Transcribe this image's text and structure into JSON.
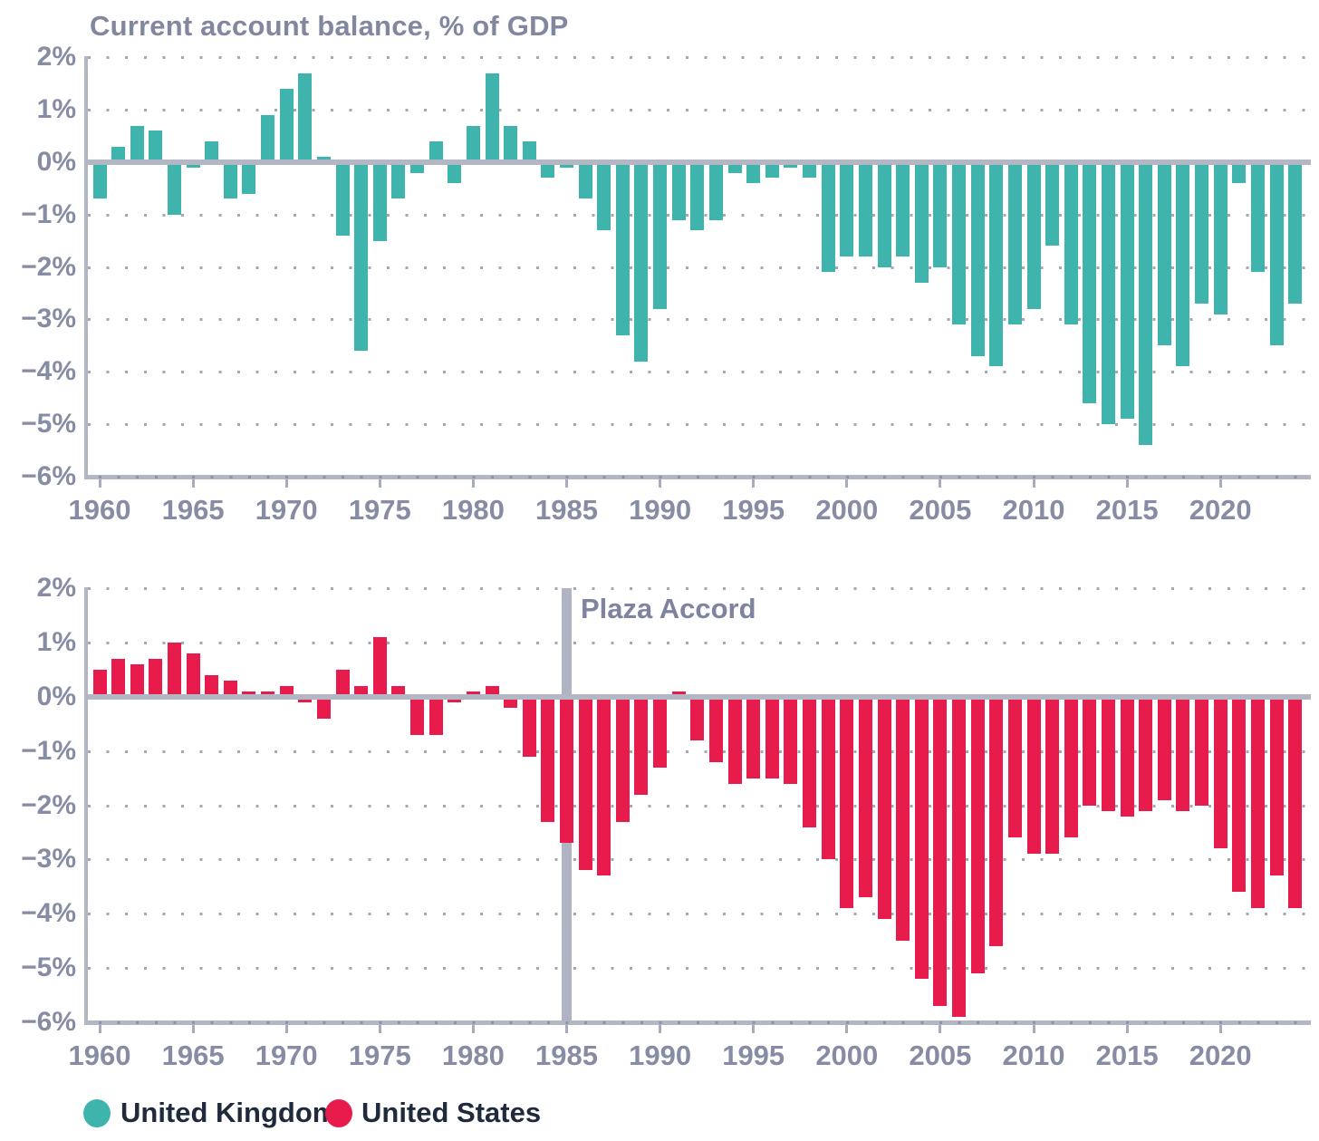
{
  "chart_data": {
    "type": "bar",
    "layout": "two stacked panels, one series per panel, shared x axis",
    "title": "Current account balance, % of GDP",
    "ylabel": "Current account balance, % of GDP",
    "ylim": [
      -6,
      2
    ],
    "y_tick_labels": [
      "2%",
      "1%",
      "0%",
      "−1%",
      "−2%",
      "−3%",
      "−4%",
      "−5%",
      "−6%"
    ],
    "y_tick_values": [
      2,
      1,
      0,
      -1,
      -2,
      -3,
      -4,
      -5,
      -6
    ],
    "grid": "dotted horizontal gridlines at each 1%",
    "legend_position": "bottom-left",
    "x": [
      1960,
      1961,
      1962,
      1963,
      1964,
      1965,
      1966,
      1967,
      1968,
      1969,
      1970,
      1971,
      1972,
      1973,
      1974,
      1975,
      1976,
      1977,
      1978,
      1979,
      1980,
      1981,
      1982,
      1983,
      1984,
      1985,
      1986,
      1987,
      1988,
      1989,
      1990,
      1991,
      1992,
      1993,
      1994,
      1995,
      1996,
      1997,
      1998,
      1999,
      2000,
      2001,
      2002,
      2003,
      2004,
      2005,
      2006,
      2007,
      2008,
      2009,
      2010,
      2011,
      2012,
      2013,
      2014,
      2015,
      2016,
      2017,
      2018,
      2019,
      2020,
      2021,
      2022,
      2023,
      2024
    ],
    "x_tick_years": [
      1960,
      1965,
      1970,
      1975,
      1980,
      1985,
      1990,
      1995,
      2000,
      2005,
      2010,
      2015,
      2020
    ],
    "series": [
      {
        "name": "United Kingdom",
        "panel": 0,
        "color": "#3EB4AD",
        "values": [
          -0.7,
          0.3,
          0.7,
          0.6,
          -1.0,
          -0.1,
          0.4,
          -0.7,
          -0.6,
          0.9,
          1.4,
          1.7,
          0.1,
          -1.4,
          -3.6,
          -1.5,
          -0.7,
          -0.2,
          0.4,
          -0.4,
          0.7,
          1.7,
          0.7,
          0.4,
          -0.3,
          -0.1,
          -0.7,
          -1.3,
          -3.3,
          -3.8,
          -2.8,
          -1.1,
          -1.3,
          -1.1,
          -0.2,
          -0.4,
          -0.3,
          -0.1,
          -0.3,
          -2.1,
          -1.8,
          -1.8,
          -2.0,
          -1.8,
          -2.3,
          -2.0,
          -3.1,
          -3.7,
          -3.9,
          -3.1,
          -2.8,
          -1.6,
          -3.1,
          -4.6,
          -5.0,
          -4.9,
          -5.4,
          -3.5,
          -3.9,
          -2.7,
          -2.9,
          -0.4,
          -2.1,
          -3.5,
          -2.7
        ]
      },
      {
        "name": "United States",
        "panel": 1,
        "color": "#E71C4D",
        "values": [
          0.5,
          0.7,
          0.6,
          0.7,
          1.0,
          0.8,
          0.4,
          0.3,
          0.1,
          0.1,
          0.2,
          -0.1,
          -0.4,
          0.5,
          0.2,
          1.1,
          0.2,
          -0.7,
          -0.7,
          -0.1,
          0.1,
          0.2,
          -0.2,
          -1.1,
          -2.3,
          -2.7,
          -3.2,
          -3.3,
          -2.3,
          -1.8,
          -1.3,
          0.1,
          -0.8,
          -1.2,
          -1.6,
          -1.5,
          -1.5,
          -1.6,
          -2.4,
          -3.0,
          -3.9,
          -3.7,
          -4.1,
          -4.5,
          -5.2,
          -5.7,
          -5.9,
          -5.1,
          -4.6,
          -2.6,
          -2.9,
          -2.9,
          -2.6,
          -2.0,
          -2.1,
          -2.2,
          -2.1,
          -1.9,
          -2.1,
          -2.0,
          -2.8,
          -3.6,
          -3.9,
          -3.3,
          -3.9
        ]
      }
    ],
    "annotation": {
      "text": "Plaza Accord",
      "x": 1985,
      "panel": 1,
      "style": "vertical gray line"
    }
  },
  "colors": {
    "uk_teal": "#3EB4AD",
    "us_red": "#E71C4D",
    "axis_gray": "#B3B6C3",
    "grid_dot_gray": "#A3A7B7",
    "tick_text_gray": "#868CA3",
    "title_gray": "#81879F",
    "plaza_line_gray": "#AFB3C4",
    "legend_text_dark": "#1F2A3C",
    "background": "#FFFFFF"
  }
}
